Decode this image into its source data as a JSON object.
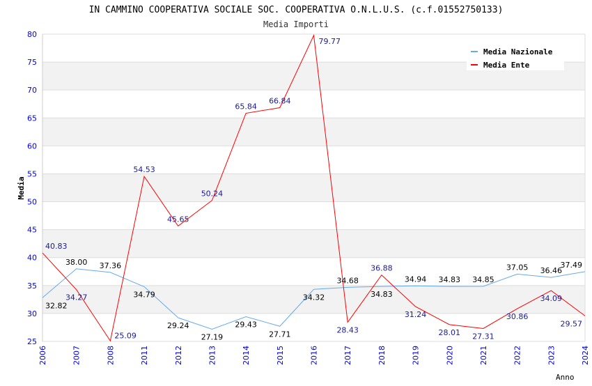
{
  "chart_data": {
    "type": "line",
    "title": "IN CAMMINO COOPERATIVA SOCIALE SOC. COOPERATIVA O.N.L.U.S. (c.f.01552750133)",
    "subtitle": "Media Importi",
    "xlabel": "Anno",
    "ylabel": "Media",
    "ylim": [
      25,
      80
    ],
    "yticks": [
      25,
      30,
      35,
      40,
      45,
      50,
      55,
      60,
      65,
      70,
      75,
      80
    ],
    "categories": [
      "2006",
      "2007",
      "2008",
      "2011",
      "2012",
      "2013",
      "2014",
      "2015",
      "2016",
      "2017",
      "2018",
      "2019",
      "2020",
      "2021",
      "2022",
      "2023",
      "2024"
    ],
    "legend_position": "top-right",
    "series": [
      {
        "name": "Media Nazionale",
        "color": "#66aaee",
        "label_color": "#000000",
        "values": [
          32.82,
          38.0,
          37.36,
          34.79,
          29.24,
          27.19,
          29.43,
          27.71,
          34.32,
          34.68,
          34.83,
          34.94,
          34.83,
          34.85,
          37.05,
          36.46,
          37.49
        ]
      },
      {
        "name": "Media Ente",
        "color": "#ff0000",
        "label_color": "#1a1a99",
        "values": [
          40.83,
          34.27,
          25.09,
          54.53,
          45.65,
          50.24,
          65.84,
          66.84,
          79.77,
          28.43,
          36.88,
          31.24,
          28.01,
          27.31,
          30.86,
          34.09,
          29.57
        ]
      }
    ]
  }
}
